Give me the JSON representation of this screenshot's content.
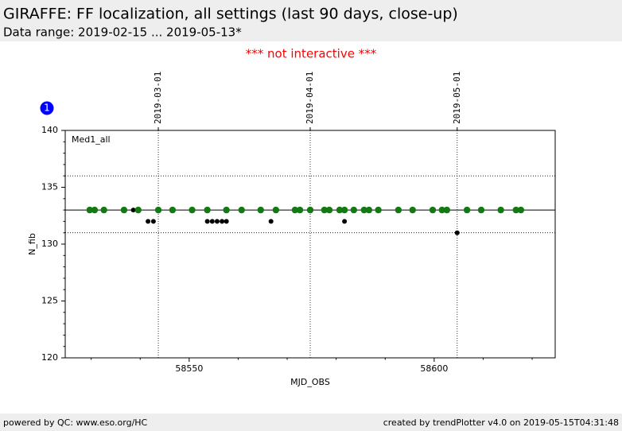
{
  "header": {
    "title": "GIRAFFE: FF localization, all settings (last 90 days, close-up)",
    "subtitle": "Data range: 2019-02-15 ... 2019-05-13*",
    "notice": "*** not interactive ***",
    "badge": "1"
  },
  "footer": {
    "left": "powered by QC: www.eso.org/HC",
    "right": "created by trendPlotter v4.0 on 2019-05-15T04:31:48"
  },
  "chart_data": {
    "type": "scatter",
    "xlabel": "MJD_OBS",
    "ylabel": "N_fib",
    "annotation": "Med1_all",
    "xlim": [
      58524.7,
      58624.7
    ],
    "ylim": [
      120,
      140
    ],
    "xticks": [
      58550,
      58600
    ],
    "yticks": [
      120,
      125,
      130,
      135,
      140
    ],
    "xminor_ticks": [
      58530,
      58540,
      58560,
      58570,
      58580,
      58590,
      58610,
      58620
    ],
    "yminor_ticks": [
      121,
      122,
      123,
      124,
      126,
      127,
      128,
      129,
      131,
      132,
      133,
      134,
      136,
      137,
      138,
      139
    ],
    "date_lines": [
      {
        "value": 58543.7,
        "label": "2019-03-01"
      },
      {
        "value": 58574.7,
        "label": "2019-04-01"
      },
      {
        "value": 58604.7,
        "label": "2019-05-01"
      }
    ],
    "reference_line": 133,
    "limit_lines": [
      136,
      131
    ],
    "series": [
      {
        "color": "#000000",
        "x": [
          58538.6,
          58541.6,
          58542.7,
          58553.7,
          58554.7,
          58555.7,
          58556.7,
          58557.6,
          58566.7,
          58581.7,
          58604.7
        ],
        "values": [
          133,
          132,
          132,
          132,
          132,
          132,
          132,
          132,
          132,
          132,
          131
        ]
      },
      {
        "color": "#137a13",
        "x": [
          58529.7,
          58530.7,
          58532.6,
          58536.7,
          58539.6,
          58543.7,
          58546.6,
          58550.6,
          58553.7,
          58557.6,
          58560.7,
          58564.6,
          58567.7,
          58571.6,
          58572.6,
          58574.7,
          58577.6,
          58578.6,
          58580.7,
          58581.7,
          58583.6,
          58585.7,
          58586.7,
          58588.6,
          58592.7,
          58595.6,
          58599.7,
          58601.6,
          58602.6,
          58606.7,
          58609.6,
          58613.6,
          58616.7,
          58617.7
        ],
        "values": [
          133,
          133,
          133,
          133,
          133,
          133,
          133,
          133,
          133,
          133,
          133,
          133,
          133,
          133,
          133,
          133,
          133,
          133,
          133,
          133,
          133,
          133,
          133,
          133,
          133,
          133,
          133,
          133,
          133,
          133,
          133,
          133,
          133,
          133
        ]
      }
    ]
  }
}
